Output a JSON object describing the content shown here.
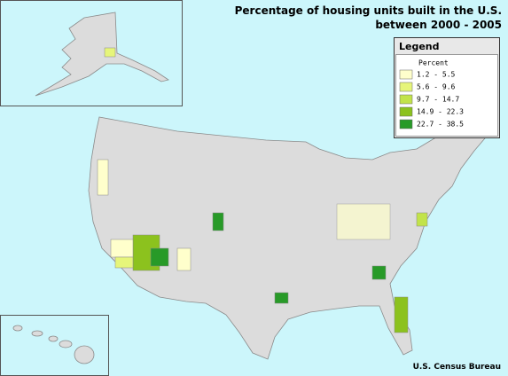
{
  "title_lines": [
    "Percentage of housing units built in the U.S.",
    "between 2000 - 2005"
  ],
  "legend": {
    "title": "Legend",
    "subtitle": "Percent",
    "items": [
      {
        "label": "1.2 - 5.5",
        "color": "#ffffcc"
      },
      {
        "label": "5.6 - 9.6",
        "color": "#e6f57a"
      },
      {
        "label": "9.7 - 14.7",
        "color": "#c2e34a"
      },
      {
        "label": "14.9 - 22.3",
        "color": "#8cc21e"
      },
      {
        "label": "22.7 - 38.5",
        "color": "#289a28"
      }
    ]
  },
  "source": "U.S. Census Bureau"
}
